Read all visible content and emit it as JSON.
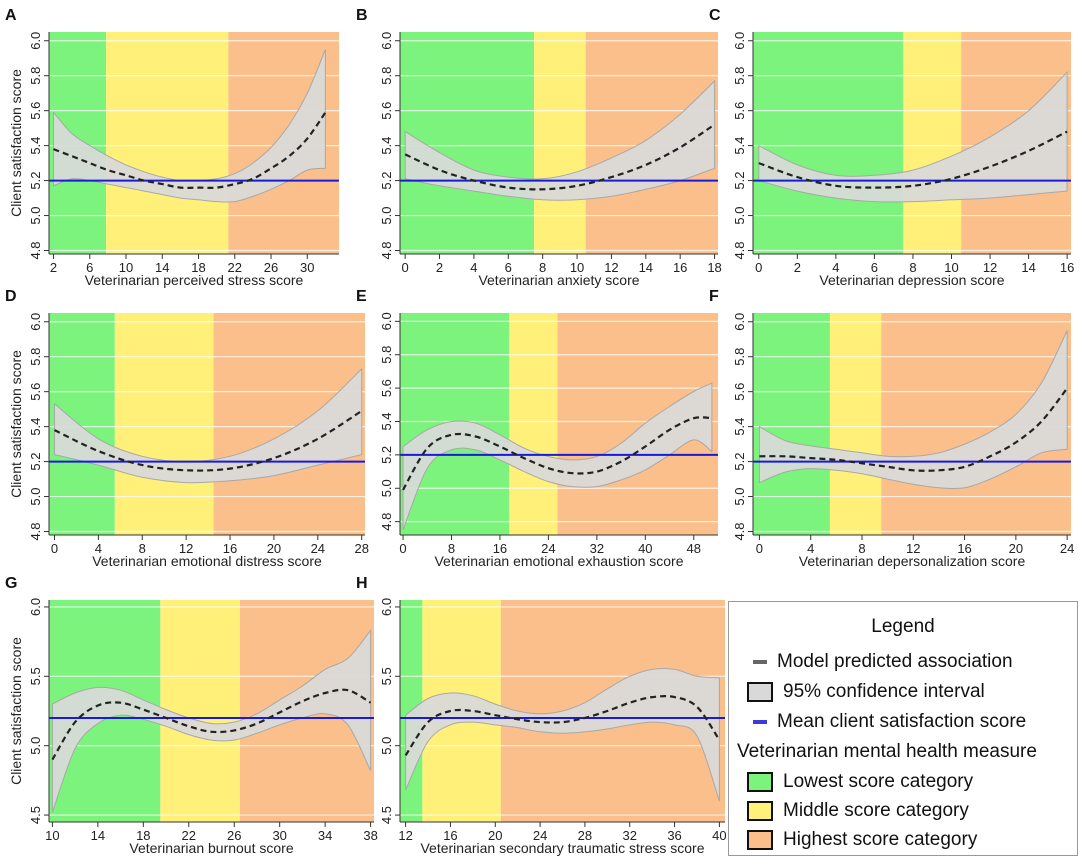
{
  "colors": {
    "low": "#7cf37c",
    "mid": "#fff07a",
    "high": "#fbbf8b",
    "band": "#d9d9d9",
    "band_edge": "#a8a8a8",
    "mean_line": "#1a1adb",
    "curve": "#222222"
  },
  "legend": {
    "title": "Legend",
    "items": [
      {
        "label": "Model predicted association",
        "symbol": "dash-line",
        "color": "#666666"
      },
      {
        "label": "95% confidence interval",
        "symbol": "grey-box",
        "color": "#d9d9d9"
      },
      {
        "label": "Mean client satisfaction score",
        "symbol": "blue-line",
        "color": "#3b3bdb"
      }
    ],
    "heading": "Veterinarian mental health measure",
    "categories": [
      {
        "label": "Lowest score category",
        "color": "#7cf37c"
      },
      {
        "label": "Middle score category",
        "color": "#fff07a"
      },
      {
        "label": "Highest score category",
        "color": "#fbbf8b"
      }
    ]
  },
  "chart_data": [
    {
      "panel": "A",
      "type": "line",
      "xlabel": "Veterinarian perceived stress score",
      "ylabel": "Client satisfaction score",
      "xlim": [
        1.5,
        33.5
      ],
      "ylim": [
        4.78,
        6.05
      ],
      "xticks": [
        2,
        6,
        10,
        14,
        18,
        22,
        26,
        30
      ],
      "yticks": [
        4.8,
        5.0,
        5.2,
        5.4,
        5.6,
        5.8,
        6.0
      ],
      "ytick_labels": [
        "4.8",
        "5.0",
        "5.2",
        "5.4",
        "5.6",
        "5.8",
        "6.0"
      ],
      "categories": {
        "low": [
          1.5,
          7.8
        ],
        "mid": [
          7.8,
          21.3
        ],
        "high": [
          21.3,
          33.5
        ]
      },
      "mean": 5.2,
      "x": [
        2,
        4,
        6,
        8,
        10,
        12,
        14,
        16,
        18,
        20,
        22,
        24,
        26,
        28,
        30,
        32
      ],
      "predicted": [
        5.38,
        5.34,
        5.3,
        5.26,
        5.23,
        5.2,
        5.18,
        5.16,
        5.16,
        5.16,
        5.18,
        5.21,
        5.27,
        5.34,
        5.44,
        5.59
      ],
      "ci_upper": [
        5.59,
        5.47,
        5.4,
        5.34,
        5.29,
        5.25,
        5.22,
        5.2,
        5.2,
        5.21,
        5.24,
        5.3,
        5.39,
        5.52,
        5.7,
        5.95
      ],
      "ci_lower": [
        5.17,
        5.21,
        5.2,
        5.18,
        5.16,
        5.14,
        5.12,
        5.1,
        5.09,
        5.08,
        5.08,
        5.11,
        5.15,
        5.2,
        5.26,
        5.27
      ]
    },
    {
      "panel": "B",
      "type": "line",
      "xlabel": "Veterinarian anxiety score",
      "ylabel": "",
      "xlim": [
        -0.3,
        18.2
      ],
      "ylim": [
        4.78,
        6.05
      ],
      "xticks": [
        0,
        2,
        4,
        6,
        8,
        10,
        12,
        14,
        16,
        18
      ],
      "yticks": [
        4.8,
        5.0,
        5.2,
        5.4,
        5.6,
        5.8,
        6.0
      ],
      "ytick_labels": [
        "4.8",
        "5.0",
        "5.2",
        "5.4",
        "5.6",
        "5.8",
        "6.0"
      ],
      "categories": {
        "low": [
          -0.3,
          7.5
        ],
        "mid": [
          7.5,
          10.5
        ],
        "high": [
          10.5,
          18.2
        ]
      },
      "mean": 5.2,
      "x": [
        0,
        2,
        4,
        6,
        8,
        10,
        12,
        14,
        16,
        18
      ],
      "predicted": [
        5.35,
        5.26,
        5.2,
        5.16,
        5.15,
        5.17,
        5.22,
        5.29,
        5.39,
        5.52
      ],
      "ci_upper": [
        5.48,
        5.36,
        5.26,
        5.22,
        5.21,
        5.25,
        5.33,
        5.43,
        5.58,
        5.77
      ],
      "ci_lower": [
        5.21,
        5.17,
        5.14,
        5.11,
        5.09,
        5.09,
        5.11,
        5.15,
        5.2,
        5.27
      ]
    },
    {
      "panel": "C",
      "type": "line",
      "xlabel": "Veterinarian depression score",
      "ylabel": "",
      "xlim": [
        -0.3,
        16.2
      ],
      "ylim": [
        4.78,
        6.05
      ],
      "xticks": [
        0,
        2,
        4,
        6,
        8,
        10,
        12,
        14,
        16
      ],
      "yticks": [
        4.8,
        5.0,
        5.2,
        5.4,
        5.6,
        5.8,
        6.0
      ],
      "ytick_labels": [
        "4.8",
        "5.0",
        "5.2",
        "5.4",
        "5.6",
        "5.8",
        "6.0"
      ],
      "categories": {
        "low": [
          -0.3,
          7.5
        ],
        "mid": [
          7.5,
          10.5
        ],
        "high": [
          10.5,
          16.2
        ]
      },
      "mean": 5.2,
      "x": [
        0,
        2,
        4,
        6,
        8,
        10,
        12,
        14,
        16
      ],
      "predicted": [
        5.3,
        5.22,
        5.17,
        5.16,
        5.17,
        5.21,
        5.28,
        5.37,
        5.48
      ],
      "ci_upper": [
        5.4,
        5.29,
        5.23,
        5.23,
        5.26,
        5.34,
        5.45,
        5.6,
        5.82
      ],
      "ci_lower": [
        5.2,
        5.14,
        5.1,
        5.08,
        5.08,
        5.09,
        5.1,
        5.12,
        5.14
      ]
    },
    {
      "panel": "D",
      "type": "line",
      "xlabel": "Veterinarian emotional distress score",
      "ylabel": "Client satisfaction score",
      "xlim": [
        -0.5,
        28.3
      ],
      "ylim": [
        4.78,
        6.05
      ],
      "xticks": [
        0,
        4,
        8,
        12,
        16,
        20,
        24,
        28
      ],
      "yticks": [
        4.8,
        5.0,
        5.2,
        5.4,
        5.6,
        5.8,
        6.0
      ],
      "ytick_labels": [
        "4.8",
        "5.0",
        "5.2",
        "5.4",
        "5.6",
        "5.8",
        "6.0"
      ],
      "categories": {
        "low": [
          -0.5,
          5.5
        ],
        "mid": [
          5.5,
          14.5
        ],
        "high": [
          14.5,
          28.3
        ]
      },
      "mean": 5.2,
      "x": [
        0,
        4,
        8,
        12,
        16,
        20,
        24,
        28
      ],
      "predicted": [
        5.38,
        5.26,
        5.18,
        5.15,
        5.16,
        5.22,
        5.33,
        5.49
      ],
      "ci_upper": [
        5.53,
        5.33,
        5.23,
        5.2,
        5.23,
        5.33,
        5.49,
        5.73
      ],
      "ci_lower": [
        5.24,
        5.18,
        5.11,
        5.08,
        5.09,
        5.12,
        5.18,
        5.24
      ]
    },
    {
      "panel": "E",
      "type": "line",
      "xlabel": "Veterinarian emotional exhaustion score",
      "ylabel": "",
      "xlim": [
        -0.5,
        52.0
      ],
      "ylim": [
        4.72,
        6.05
      ],
      "xticks": [
        0,
        8,
        16,
        24,
        32,
        40,
        48
      ],
      "yticks": [
        4.8,
        5.0,
        5.2,
        5.4,
        5.6,
        5.8,
        6.0
      ],
      "ytick_labels": [
        "4.8",
        "5.0",
        "5.2",
        "5.4",
        "5.6",
        "5.8",
        "6.0"
      ],
      "categories": {
        "low": [
          -0.5,
          17.5
        ],
        "mid": [
          17.5,
          25.5
        ],
        "high": [
          25.5,
          52.0
        ]
      },
      "mean": 5.2,
      "x": [
        0,
        4,
        8,
        12,
        16,
        20,
        24,
        28,
        32,
        36,
        40,
        44,
        48,
        51
      ],
      "predicted": [
        4.99,
        5.24,
        5.32,
        5.31,
        5.25,
        5.18,
        5.12,
        5.09,
        5.1,
        5.16,
        5.25,
        5.35,
        5.42,
        5.42
      ],
      "ci_upper": [
        5.25,
        5.35,
        5.4,
        5.39,
        5.32,
        5.24,
        5.19,
        5.17,
        5.19,
        5.27,
        5.39,
        5.49,
        5.58,
        5.63
      ],
      "ci_lower": [
        4.75,
        5.12,
        5.23,
        5.23,
        5.17,
        5.1,
        5.04,
        5.01,
        5.01,
        5.05,
        5.11,
        5.2,
        5.29,
        5.22
      ]
    },
    {
      "panel": "F",
      "type": "line",
      "xlabel": "Veterinarian depersonalization score",
      "ylabel": "",
      "xlim": [
        -0.5,
        24.3
      ],
      "ylim": [
        4.78,
        6.05
      ],
      "xticks": [
        0,
        4,
        8,
        12,
        16,
        20,
        24
      ],
      "yticks": [
        4.8,
        5.0,
        5.2,
        5.4,
        5.6,
        5.8,
        6.0
      ],
      "ytick_labels": [
        "4.8",
        "5.0",
        "5.2",
        "5.4",
        "5.6",
        "5.8",
        "6.0"
      ],
      "categories": {
        "low": [
          -0.5,
          5.5
        ],
        "mid": [
          5.5,
          9.5
        ],
        "high": [
          9.5,
          24.3
        ]
      },
      "mean": 5.2,
      "x": [
        0,
        2,
        4,
        6,
        8,
        10,
        12,
        14,
        16,
        18,
        20,
        22,
        24
      ],
      "predicted": [
        5.23,
        5.23,
        5.22,
        5.21,
        5.19,
        5.17,
        5.15,
        5.15,
        5.17,
        5.23,
        5.31,
        5.43,
        5.62
      ],
      "ci_upper": [
        5.4,
        5.32,
        5.29,
        5.27,
        5.25,
        5.23,
        5.23,
        5.25,
        5.3,
        5.37,
        5.47,
        5.65,
        5.95
      ],
      "ci_lower": [
        5.08,
        5.14,
        5.16,
        5.15,
        5.13,
        5.1,
        5.07,
        5.05,
        5.05,
        5.1,
        5.17,
        5.25,
        5.27
      ]
    },
    {
      "panel": "G",
      "type": "line",
      "xlabel": "Veterinarian burnout score",
      "ylabel": "Client satisfaction score",
      "xlim": [
        9.7,
        38.3
      ],
      "ylim": [
        4.45,
        6.05
      ],
      "xticks": [
        10,
        14,
        18,
        22,
        26,
        30,
        34,
        38
      ],
      "yticks": [
        4.5,
        5.0,
        5.5,
        6.0
      ],
      "ytick_labels": [
        "4.5",
        "5.0",
        "5.5",
        "6.0"
      ],
      "categories": {
        "low": [
          9.7,
          19.5
        ],
        "mid": [
          19.5,
          26.5
        ],
        "high": [
          26.5,
          38.3
        ]
      },
      "mean": 5.2,
      "x": [
        10,
        12,
        14,
        16,
        18,
        20,
        22,
        24,
        26,
        28,
        30,
        32,
        34,
        36,
        38
      ],
      "predicted": [
        4.9,
        5.17,
        5.29,
        5.31,
        5.26,
        5.2,
        5.14,
        5.1,
        5.11,
        5.16,
        5.24,
        5.32,
        5.38,
        5.4,
        5.31
      ],
      "ci_upper": [
        5.3,
        5.38,
        5.42,
        5.4,
        5.33,
        5.26,
        5.2,
        5.16,
        5.17,
        5.23,
        5.33,
        5.43,
        5.55,
        5.63,
        5.83
      ],
      "ci_lower": [
        4.52,
        4.98,
        5.16,
        5.22,
        5.19,
        5.14,
        5.08,
        5.04,
        5.04,
        5.09,
        5.15,
        5.2,
        5.23,
        5.15,
        4.82
      ]
    },
    {
      "panel": "H",
      "type": "line",
      "xlabel": "Veterinarian secondary traumatic stress score",
      "ylabel": "",
      "xlim": [
        11.5,
        40.5
      ],
      "ylim": [
        4.45,
        6.05
      ],
      "xticks": [
        12,
        16,
        20,
        24,
        28,
        32,
        36,
        40
      ],
      "yticks": [
        4.5,
        5.0,
        5.5,
        6.0
      ],
      "ytick_labels": [
        "4.5",
        "5.0",
        "5.5",
        "6.0"
      ],
      "categories": {
        "low": [
          11.5,
          13.5
        ],
        "mid": [
          13.5,
          20.5
        ],
        "high": [
          20.5,
          40.5
        ]
      },
      "mean": 5.2,
      "x": [
        12,
        14,
        16,
        18,
        20,
        22,
        24,
        26,
        28,
        30,
        32,
        34,
        36,
        38,
        40
      ],
      "predicted": [
        4.93,
        5.17,
        5.25,
        5.25,
        5.22,
        5.19,
        5.17,
        5.17,
        5.2,
        5.25,
        5.31,
        5.35,
        5.35,
        5.28,
        5.04
      ],
      "ci_upper": [
        5.22,
        5.34,
        5.38,
        5.36,
        5.3,
        5.25,
        5.23,
        5.25,
        5.31,
        5.41,
        5.5,
        5.55,
        5.55,
        5.5,
        5.49
      ],
      "ci_lower": [
        4.68,
        5.03,
        5.15,
        5.17,
        5.15,
        5.13,
        5.1,
        5.09,
        5.1,
        5.12,
        5.15,
        5.17,
        5.15,
        5.07,
        4.6
      ]
    }
  ]
}
